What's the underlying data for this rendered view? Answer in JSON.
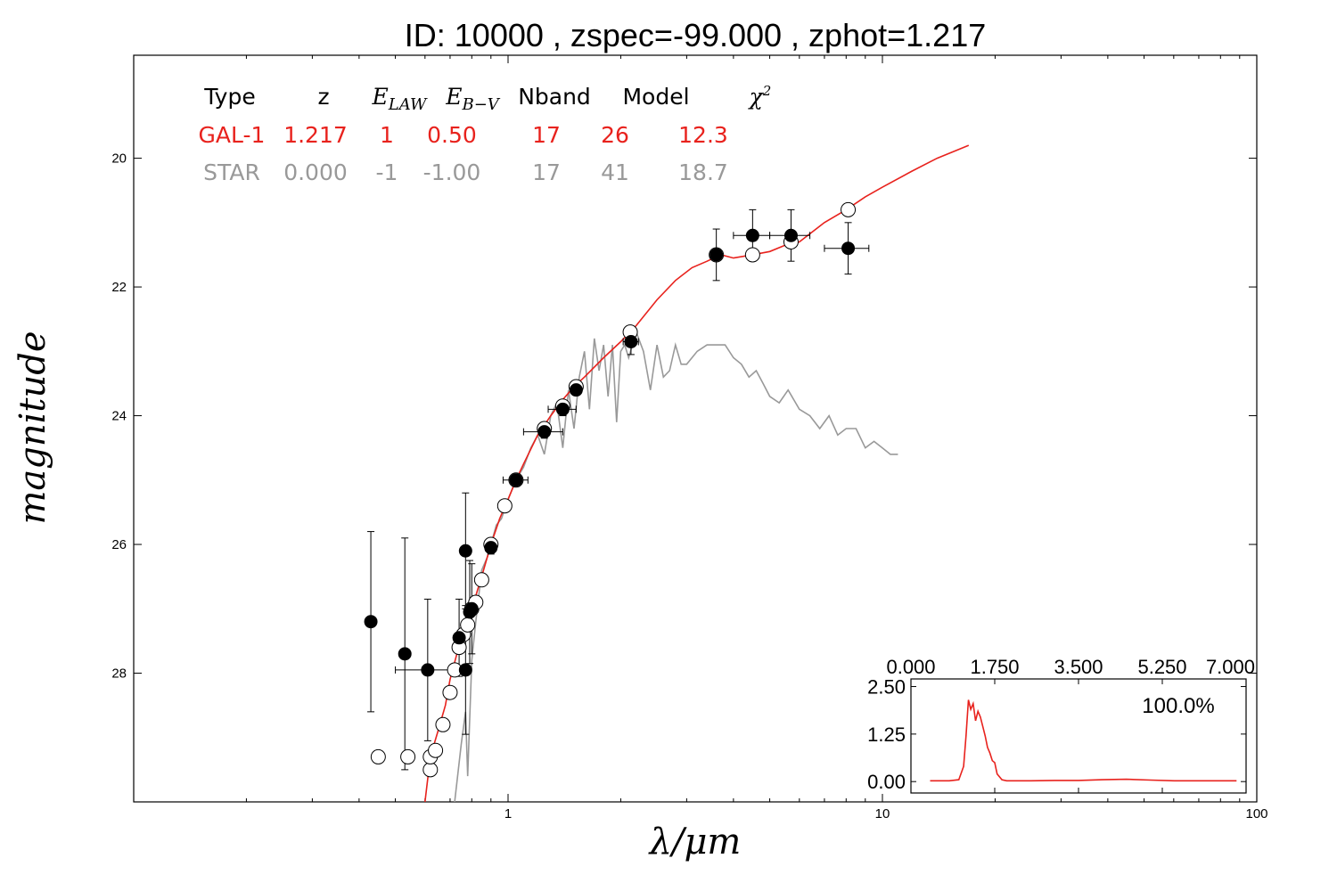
{
  "chart_data": {
    "type": "scatter",
    "title": "ID:  10000 , zspec=-99.000 , zphot=1.217",
    "xlabel": "λ/μm",
    "ylabel": "magnitude",
    "xscale": "log",
    "xlim": [
      0.1,
      100
    ],
    "ylim": [
      30,
      18.4
    ],
    "y_inverted": true,
    "x_tick_labels": [
      "1",
      "10",
      "100"
    ],
    "y_tick_labels": [
      "20",
      "22",
      "24",
      "26",
      "28"
    ],
    "x_tick_values": [
      1,
      10,
      100
    ],
    "y_tick_values": [
      20,
      22,
      24,
      26,
      28
    ],
    "grid": false,
    "legend_table": {
      "headers": [
        "Type",
        "z",
        "E_LAW",
        "E_B−V",
        "Nband",
        "Model",
        "χ²"
      ],
      "rows": [
        {
          "cells": [
            "GAL-1",
            "1.217",
            "1",
            "0.50",
            "17",
            "26",
            "12.3"
          ],
          "color": "#e8221d"
        },
        {
          "cells": [
            "STAR",
            "0.000",
            "-1",
            "-1.00",
            "17",
            "41",
            "18.7"
          ],
          "color": "#999999"
        }
      ]
    },
    "series": [
      {
        "name": "GAL-1",
        "kind": "line",
        "color": "#e8221d",
        "x": [
          0.6,
          0.62,
          0.65,
          0.68,
          0.7,
          0.73,
          0.76,
          0.79,
          0.82,
          0.86,
          0.9,
          0.95,
          1.0,
          1.05,
          1.1,
          1.2,
          1.3,
          1.4,
          1.5,
          1.6,
          1.8,
          2.0,
          2.2,
          2.5,
          2.8,
          3.1,
          3.4,
          3.7,
          4.0,
          4.5,
          5.0,
          5.5,
          6.0,
          7.0,
          8.0,
          9.0,
          10,
          12,
          14,
          17
        ],
        "y": [
          30.0,
          29.3,
          28.9,
          28.5,
          28.1,
          27.7,
          27.35,
          27.1,
          26.8,
          26.4,
          26.0,
          25.6,
          25.3,
          25.0,
          24.75,
          24.3,
          24.0,
          23.75,
          23.55,
          23.4,
          23.1,
          22.85,
          22.6,
          22.2,
          21.9,
          21.7,
          21.6,
          21.5,
          21.55,
          21.5,
          21.45,
          21.35,
          21.3,
          21.0,
          20.8,
          20.6,
          20.45,
          20.2,
          20.0,
          19.8
        ]
      },
      {
        "name": "STAR",
        "kind": "line",
        "color": "#999999",
        "x": [
          0.72,
          0.75,
          0.77,
          0.78,
          0.8,
          0.82,
          0.85,
          0.88,
          0.9,
          0.93,
          0.96,
          1.0,
          1.05,
          1.1,
          1.15,
          1.2,
          1.25,
          1.3,
          1.35,
          1.4,
          1.45,
          1.5,
          1.55,
          1.6,
          1.65,
          1.7,
          1.75,
          1.8,
          1.85,
          1.9,
          1.95,
          2.0,
          2.05,
          2.1,
          2.2,
          2.3,
          2.4,
          2.5,
          2.6,
          2.7,
          2.8,
          2.9,
          3.0,
          3.2,
          3.4,
          3.6,
          3.8,
          4.0,
          4.2,
          4.4,
          4.6,
          4.8,
          5.0,
          5.3,
          5.6,
          6.0,
          6.4,
          6.8,
          7.2,
          7.6,
          8.0,
          8.5,
          9.0,
          9.5,
          10.0,
          10.5,
          11.0
        ],
        "y": [
          30.0,
          29.1,
          28.6,
          29.6,
          27.8,
          27.2,
          26.4,
          26.2,
          26.0,
          25.7,
          25.6,
          25.3,
          25.0,
          24.8,
          24.5,
          24.3,
          24.6,
          24.0,
          23.8,
          24.5,
          23.6,
          24.2,
          23.4,
          23.0,
          23.9,
          22.8,
          23.3,
          22.9,
          23.7,
          22.9,
          24.1,
          23.0,
          22.9,
          23.1,
          22.7,
          23.0,
          23.6,
          22.9,
          23.4,
          23.3,
          22.9,
          23.2,
          23.2,
          23.0,
          22.9,
          22.9,
          22.9,
          23.1,
          23.2,
          23.4,
          23.3,
          23.5,
          23.7,
          23.8,
          23.6,
          23.9,
          24.0,
          24.2,
          24.0,
          24.3,
          24.2,
          24.2,
          24.5,
          24.4,
          24.5,
          24.6,
          24.6
        ]
      },
      {
        "name": "model magnitudes",
        "kind": "open-circle",
        "x": [
          0.45,
          0.54,
          0.62,
          0.62,
          0.64,
          0.67,
          0.7,
          0.72,
          0.74,
          0.76,
          0.78,
          0.8,
          0.82,
          0.85,
          0.9,
          0.98,
          1.05,
          1.25,
          1.4,
          1.52,
          2.12,
          3.6,
          4.5,
          5.7,
          8.1
        ],
        "y": [
          29.3,
          29.3,
          29.5,
          29.3,
          29.2,
          28.8,
          28.3,
          27.95,
          27.6,
          27.4,
          27.25,
          27.0,
          26.9,
          26.55,
          26.0,
          25.4,
          25.0,
          24.2,
          23.85,
          23.55,
          22.7,
          21.5,
          21.5,
          21.3,
          20.8
        ]
      },
      {
        "name": "observed magnitudes",
        "kind": "filled-circle",
        "x": [
          0.43,
          0.53,
          0.61,
          0.74,
          0.77,
          0.77,
          0.79,
          0.8,
          0.9,
          1.05,
          1.25,
          1.4,
          1.52,
          2.13,
          3.6,
          4.5,
          5.7,
          8.1
        ],
        "y": [
          27.2,
          27.7,
          27.95,
          27.45,
          26.1,
          27.95,
          27.05,
          27.0,
          26.05,
          25.0,
          24.25,
          23.9,
          23.6,
          22.85,
          21.5,
          21.2,
          21.2,
          21.4
        ],
        "yerr": [
          1.4,
          1.8,
          1.1,
          0.6,
          0.9,
          1.0,
          0.8,
          0.7,
          0.1,
          0.1,
          0.1,
          0.1,
          0.08,
          0.2,
          0.4,
          0.4,
          0.4,
          0.4
        ],
        "xerr_lo": [
          0.0,
          0.0,
          0.11,
          0.02,
          0.02,
          0.02,
          0.02,
          0.02,
          0.03,
          0.08,
          0.15,
          0.12,
          0.05,
          0.1,
          0.0,
          0.5,
          0.7,
          1.1
        ],
        "xerr_hi": [
          0.0,
          0.0,
          0.11,
          0.02,
          0.02,
          0.02,
          0.02,
          0.02,
          0.03,
          0.08,
          0.15,
          0.12,
          0.05,
          0.1,
          0.0,
          0.5,
          0.7,
          1.1
        ]
      }
    ],
    "inset": {
      "type": "line",
      "xlim": [
        0,
        7
      ],
      "ylim": [
        -0.3,
        2.7
      ],
      "x_tick_labels": [
        "0.000",
        "1.750",
        "3.500",
        "5.250",
        "7.000"
      ],
      "x_tick_values": [
        0,
        1.75,
        3.5,
        5.25,
        7.0
      ],
      "y_tick_labels": [
        "2.50",
        "1.25",
        "0.00"
      ],
      "y_tick_values": [
        2.5,
        1.25,
        0.0
      ],
      "annotation": "100.0%",
      "color": "#e8221d",
      "x": [
        0.4,
        0.8,
        1.0,
        1.1,
        1.15,
        1.2,
        1.25,
        1.3,
        1.35,
        1.4,
        1.45,
        1.5,
        1.55,
        1.6,
        1.65,
        1.7,
        1.75,
        1.8,
        1.9,
        2.0,
        2.2,
        2.5,
        3.0,
        3.5,
        4.0,
        4.5,
        5.0,
        5.5,
        6.0,
        6.5,
        6.8
      ],
      "y": [
        0.02,
        0.02,
        0.05,
        0.4,
        1.2,
        2.15,
        1.9,
        2.05,
        1.6,
        1.85,
        1.7,
        1.45,
        1.2,
        0.9,
        0.75,
        0.55,
        0.5,
        0.2,
        0.05,
        0.02,
        0.02,
        0.02,
        0.03,
        0.03,
        0.05,
        0.06,
        0.04,
        0.02,
        0.02,
        0.02,
        0.02
      ]
    }
  }
}
